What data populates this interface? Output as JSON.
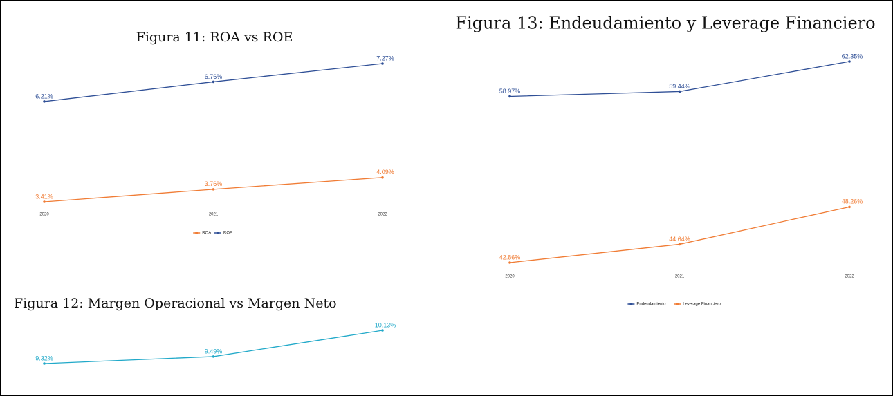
{
  "chart_data": [
    {
      "type": "line",
      "title": "Figura 11: ROA vs ROE",
      "categories": [
        "2020",
        "2021",
        "2022"
      ],
      "series": [
        {
          "name": "ROA",
          "color": "#f07c35",
          "values": [
            3.41,
            3.76,
            4.09
          ],
          "value_labels": [
            "3.41%",
            "3.76%",
            "4.09%"
          ]
        },
        {
          "name": "ROE",
          "color": "#2f4f96",
          "values": [
            6.21,
            6.76,
            7.27
          ],
          "value_labels": [
            "6.21%",
            "6.76%",
            "7.27%"
          ]
        }
      ],
      "legend": "bottom"
    },
    {
      "type": "line",
      "title": "Figura 12: Margen Operacional vs Margen Neto",
      "categories": [
        null,
        null,
        null
      ],
      "series": [
        {
          "color": "#21a9c9",
          "values": [
            9.32,
            9.49,
            10.13
          ],
          "value_labels": [
            "9.32%",
            "9.49%",
            "10.13%"
          ]
        }
      ]
    },
    {
      "type": "line",
      "title": "Figura 13: Endeudamiento y Leverage Financiero",
      "categories": [
        "2020",
        "2021",
        "2022"
      ],
      "series": [
        {
          "name": "Endeudamiento",
          "color": "#2f4f96",
          "values": [
            58.97,
            59.44,
            62.35
          ],
          "value_labels": [
            "58.97%",
            "59.44%",
            "62.35%"
          ]
        },
        {
          "name": "Leverage Financiero",
          "color": "#f07c35",
          "values": [
            42.86,
            44.64,
            48.26
          ],
          "value_labels": [
            "42.86%",
            "44.64%",
            "48.26%"
          ]
        }
      ],
      "legend": "bottom"
    }
  ]
}
